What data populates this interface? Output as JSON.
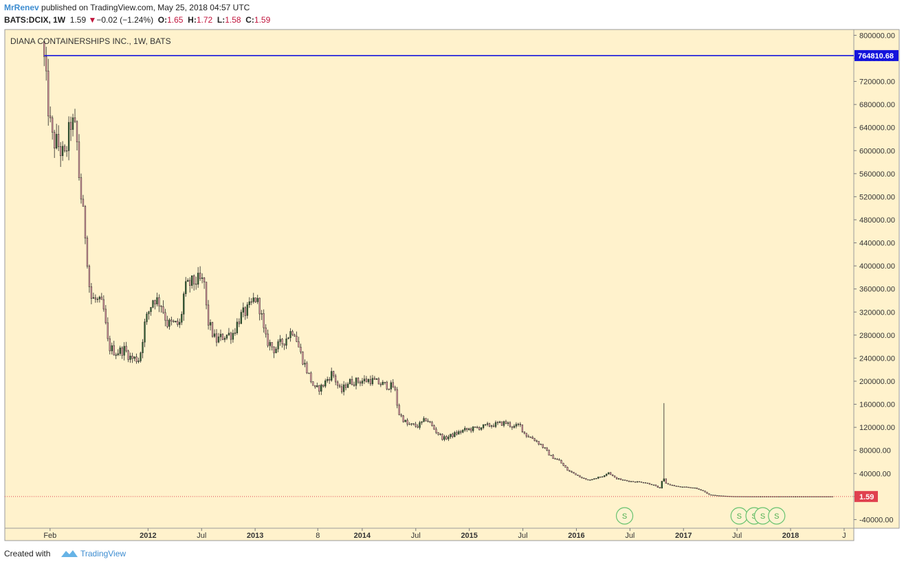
{
  "header": {
    "author": "MrRenev",
    "published_text": "published on TradingView.com, May 25, 2018 04:57 UTC",
    "symbol_label": "BATS:DCIX, 1W",
    "last_price": "1.59",
    "change_text": "−0.02 (−1.24%)",
    "open_label": "O:",
    "open_value": "1.65",
    "high_label": "H:",
    "high_value": "1.72",
    "low_label": "L:",
    "low_value": "1.58",
    "close_label": "C:",
    "close_value": "1.59"
  },
  "footer": {
    "created_with": "Created with",
    "brand": "TradingView"
  },
  "chart_data": {
    "type": "candlestick",
    "title": "DIANA CONTAINERSHIPS INC., 1W, BATS",
    "ylim": [
      -55000,
      810000
    ],
    "y_ticks": [
      800000,
      760000,
      720000,
      680000,
      640000,
      600000,
      560000,
      520000,
      480000,
      440000,
      400000,
      360000,
      320000,
      280000,
      240000,
      200000,
      160000,
      120000,
      80000,
      40000,
      0,
      -40000
    ],
    "y_tick_labels": [
      "800000.00",
      "760000.00",
      "720000.00",
      "680000.00",
      "640000.00",
      "600000.00",
      "560000.00",
      "520000.00",
      "480000.00",
      "440000.00",
      "400000.00",
      "360000.00",
      "320000.00",
      "280000.00",
      "240000.00",
      "200000.00",
      "160000.00",
      "120000.00",
      "80000.00",
      "40000.00",
      "",
      "-40000.00"
    ],
    "x_ticks": [
      {
        "t": 2011.085,
        "label": "Feb",
        "bold": false
      },
      {
        "t": 2012.0,
        "label": "2012",
        "bold": true
      },
      {
        "t": 2012.5,
        "label": "Jul",
        "bold": false
      },
      {
        "t": 2013.0,
        "label": "2013",
        "bold": true
      },
      {
        "t": 2013.585,
        "label": "8",
        "bold": false
      },
      {
        "t": 2014.0,
        "label": "2014",
        "bold": true
      },
      {
        "t": 2014.5,
        "label": "Jul",
        "bold": false
      },
      {
        "t": 2015.0,
        "label": "2015",
        "bold": true
      },
      {
        "t": 2015.5,
        "label": "Jul",
        "bold": false
      },
      {
        "t": 2016.0,
        "label": "2016",
        "bold": true
      },
      {
        "t": 2016.5,
        "label": "Jul",
        "bold": false
      },
      {
        "t": 2017.0,
        "label": "2017",
        "bold": true
      },
      {
        "t": 2017.5,
        "label": "Jul",
        "bold": false
      },
      {
        "t": 2018.0,
        "label": "2018",
        "bold": true
      },
      {
        "t": 2018.5,
        "label": "J",
        "bold": false
      }
    ],
    "horizontal_line": {
      "value": 764810.68,
      "label": "764810.68",
      "color": "#1414dc"
    },
    "last_price_marker": {
      "value": 1.59,
      "label": "1.59",
      "color": "#e0414f"
    },
    "split_markers": [
      {
        "t": 2016.45,
        "label": "S"
      },
      {
        "t": 2017.52,
        "label": "S"
      },
      {
        "t": 2017.66,
        "label": "S"
      },
      {
        "t": 2017.74,
        "label": "S"
      },
      {
        "t": 2017.87,
        "label": "S"
      }
    ],
    "colors": {
      "up": "#336633",
      "down": "#e8a0a8",
      "wick": "#222222",
      "background": "#fff2cc",
      "line": "#1414dc"
    },
    "anchors": [
      [
        2011.03,
        755000
      ],
      [
        2011.06,
        690000
      ],
      [
        2011.1,
        620000
      ],
      [
        2011.16,
        610000
      ],
      [
        2011.22,
        585000
      ],
      [
        2011.28,
        650000
      ],
      [
        2011.33,
        630000
      ],
      [
        2011.36,
        545000
      ],
      [
        2011.42,
        445000
      ],
      [
        2011.46,
        345000
      ],
      [
        2011.52,
        340000
      ],
      [
        2011.58,
        330000
      ],
      [
        2011.63,
        260000
      ],
      [
        2011.7,
        250000
      ],
      [
        2011.78,
        255000
      ],
      [
        2011.84,
        240000
      ],
      [
        2011.92,
        238000
      ],
      [
        2011.97,
        300000
      ],
      [
        2012.05,
        345000
      ],
      [
        2012.12,
        335000
      ],
      [
        2012.18,
        300000
      ],
      [
        2012.3,
        298000
      ],
      [
        2012.34,
        360000
      ],
      [
        2012.4,
        370000
      ],
      [
        2012.47,
        375000
      ],
      [
        2012.53,
        370000
      ],
      [
        2012.55,
        308000
      ],
      [
        2012.63,
        270000
      ],
      [
        2012.72,
        280000
      ],
      [
        2012.79,
        282000
      ],
      [
        2012.86,
        312000
      ],
      [
        2012.94,
        325000
      ],
      [
        2013.0,
        345000
      ],
      [
        2013.05,
        325000
      ],
      [
        2013.09,
        275000
      ],
      [
        2013.18,
        255000
      ],
      [
        2013.27,
        270000
      ],
      [
        2013.36,
        292000
      ],
      [
        2013.42,
        250000
      ],
      [
        2013.48,
        220000
      ],
      [
        2013.56,
        185000
      ],
      [
        2013.62,
        190000
      ],
      [
        2013.72,
        215000
      ],
      [
        2013.8,
        180000
      ],
      [
        2013.86,
        198000
      ],
      [
        2013.95,
        200000
      ],
      [
        2014.08,
        202000
      ],
      [
        2014.18,
        195000
      ],
      [
        2014.3,
        190000
      ],
      [
        2014.34,
        145000
      ],
      [
        2014.42,
        125000
      ],
      [
        2014.52,
        122000
      ],
      [
        2014.6,
        135000
      ],
      [
        2014.68,
        115000
      ],
      [
        2014.76,
        100000
      ],
      [
        2014.86,
        108000
      ],
      [
        2014.95,
        115000
      ],
      [
        2015.05,
        118000
      ],
      [
        2015.15,
        122000
      ],
      [
        2015.24,
        125000
      ],
      [
        2015.34,
        128000
      ],
      [
        2015.42,
        120000
      ],
      [
        2015.47,
        125000
      ],
      [
        2015.52,
        108000
      ],
      [
        2015.6,
        100000
      ],
      [
        2015.68,
        88000
      ],
      [
        2015.76,
        70000
      ],
      [
        2015.84,
        62000
      ],
      [
        2015.92,
        45000
      ],
      [
        2016.0,
        38000
      ],
      [
        2016.1,
        28000
      ],
      [
        2016.18,
        32000
      ],
      [
        2016.24,
        35000
      ],
      [
        2016.3,
        42000
      ],
      [
        2016.36,
        32000
      ],
      [
        2016.44,
        28000
      ],
      [
        2016.52,
        26000
      ],
      [
        2016.62,
        25000
      ],
      [
        2016.72,
        20000
      ],
      [
        2016.78,
        14000
      ],
      [
        2016.81,
        33000
      ],
      [
        2016.84,
        22000
      ],
      [
        2016.95,
        17000
      ],
      [
        2017.1,
        15000
      ],
      [
        2017.18,
        10000
      ],
      [
        2017.24,
        3000
      ],
      [
        2017.34,
        1200
      ],
      [
        2017.46,
        200
      ],
      [
        2017.6,
        30
      ],
      [
        2018.4,
        1.6
      ]
    ],
    "notable_highs": [
      {
        "t": 2011.03,
        "high": 765000
      },
      {
        "t": 2016.81,
        "high": 162000
      }
    ]
  }
}
